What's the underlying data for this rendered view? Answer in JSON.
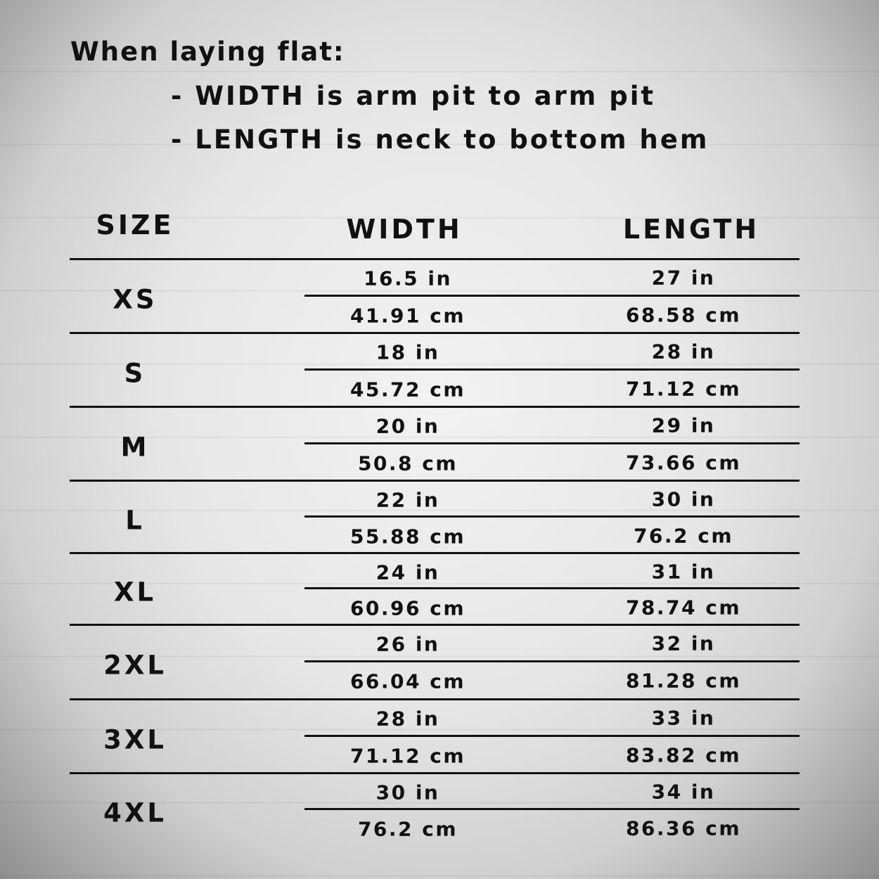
{
  "intro": {
    "title": "When laying flat:",
    "notes": [
      "- WIDTH is arm pit to arm pit",
      "- LENGTH is neck to bottom hem"
    ]
  },
  "table": {
    "headers": {
      "size": "SIZE",
      "width": "WIDTH",
      "length": "LENGTH"
    },
    "rows": [
      {
        "size": "XS",
        "width_in": "16.5 in",
        "width_cm": "41.91 cm",
        "length_in": "27 in",
        "length_cm": "68.58 cm"
      },
      {
        "size": "S",
        "width_in": "18 in",
        "width_cm": "45.72 cm",
        "length_in": "28 in",
        "length_cm": "71.12 cm"
      },
      {
        "size": "M",
        "width_in": "20 in",
        "width_cm": "50.8 cm",
        "length_in": "29 in",
        "length_cm": "73.66 cm"
      },
      {
        "size": "L",
        "width_in": "22 in",
        "width_cm": "55.88 cm",
        "length_in": "30 in",
        "length_cm": "76.2 cm"
      },
      {
        "size": "XL",
        "width_in": "24 in",
        "width_cm": "60.96 cm",
        "length_in": "31 in",
        "length_cm": "78.74 cm"
      },
      {
        "size": "2XL",
        "width_in": "26 in",
        "width_cm": "66.04 cm",
        "length_in": "32 in",
        "length_cm": "81.28 cm"
      },
      {
        "size": "3XL",
        "width_in": "28 in",
        "width_cm": "71.12 cm",
        "length_in": "33 in",
        "length_cm": "83.82 cm"
      },
      {
        "size": "4XL",
        "width_in": "30 in",
        "width_cm": "76.2 cm",
        "length_in": "34 in",
        "length_cm": "86.36 cm"
      }
    ]
  }
}
